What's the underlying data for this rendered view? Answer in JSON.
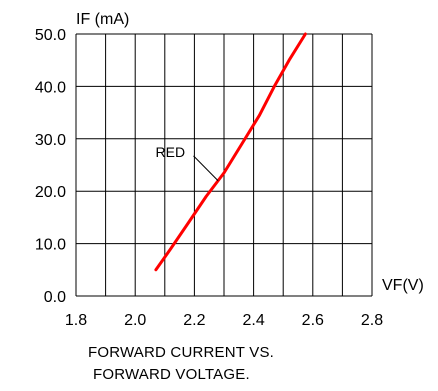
{
  "chart_data": {
    "type": "line",
    "ylabel": "IF (mA)",
    "xlabel": "VF(V)",
    "caption_line1": "FORWARD CURRENT VS.",
    "caption_line2": "FORWARD VOLTAGE.",
    "x_ticks": [
      "1.8",
      "2.0",
      "2.2",
      "2.4",
      "2.6",
      "2.8"
    ],
    "y_ticks": [
      "0.0",
      "10.0",
      "20.0",
      "30.0",
      "40.0",
      "50.0"
    ],
    "xlim": [
      1.8,
      2.8
    ],
    "ylim": [
      0,
      50
    ],
    "grid": true,
    "x_grid_step": 0.1,
    "y_grid_step": 10,
    "series": [
      {
        "name": "RED",
        "color": "#ff0000",
        "x": [
          2.07,
          2.12,
          2.18,
          2.24,
          2.3,
          2.36,
          2.42,
          2.47,
          2.52,
          2.575
        ],
        "y": [
          5,
          9,
          14,
          19,
          23.5,
          29,
          34.5,
          40,
          45,
          50
        ]
      }
    ],
    "annotation": {
      "text": "RED",
      "x": 2.17,
      "y": 27.5,
      "point_x": 2.28,
      "point_y": 22
    }
  }
}
